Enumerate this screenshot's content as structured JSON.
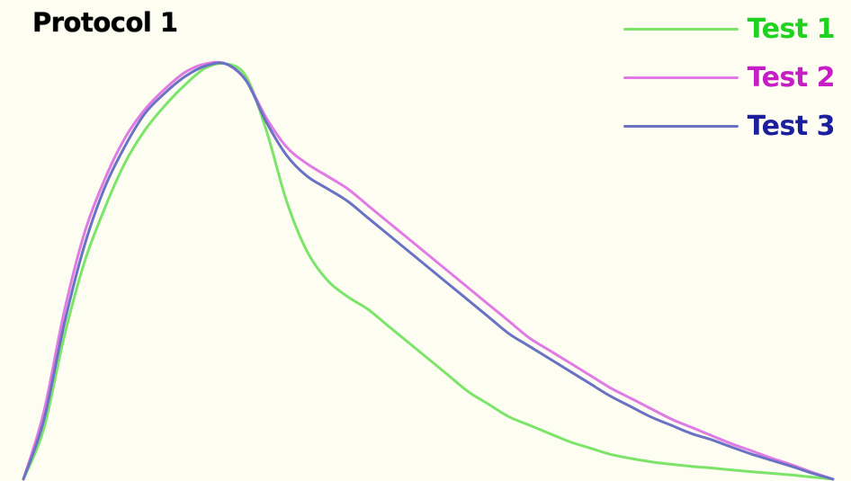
{
  "chart_data": {
    "type": "line",
    "title": "Protocol 1",
    "xlabel": "",
    "ylabel": "",
    "x": [
      0,
      2.5,
      5,
      7.5,
      10,
      12.5,
      15,
      17.5,
      20,
      22.5,
      25,
      27.5,
      30,
      32.5,
      35,
      37.5,
      40,
      42.5,
      45,
      47.5,
      50,
      52.5,
      55,
      57.5,
      60,
      62.5,
      65,
      67.5,
      70,
      72.5,
      75,
      77.5,
      80,
      82.5,
      85,
      87.5,
      90,
      92.5,
      95,
      97.5,
      100
    ],
    "xlim": [
      0,
      100
    ],
    "ylim": [
      0,
      100
    ],
    "grid": false,
    "legend_position": "top-right",
    "series": [
      {
        "name": "Test 1",
        "color": "#7de46a",
        "label_color": "#1fd21f",
        "values": [
          0,
          12,
          34,
          52,
          65,
          76,
          84,
          90,
          95,
          99,
          100,
          97,
          84,
          67,
          55,
          48,
          44,
          41,
          37,
          33,
          29,
          25,
          21,
          18,
          15,
          13,
          11,
          9,
          7.5,
          6,
          5,
          4.2,
          3.6,
          3.1,
          2.7,
          2.2,
          1.8,
          1.4,
          1.0,
          0.5,
          0
        ]
      },
      {
        "name": "Test 2",
        "color": "#e07ae4",
        "label_color": "#c41ec4",
        "values": [
          0,
          16,
          40,
          59,
          72,
          82,
          89,
          94,
          98,
          100,
          100,
          96,
          87,
          80,
          76,
          73,
          70,
          66,
          62,
          58,
          54,
          50,
          46,
          42,
          38,
          34,
          31,
          28,
          25,
          22,
          19.5,
          17,
          14.5,
          12.5,
          10.5,
          8.5,
          6.8,
          5,
          3.4,
          1.6,
          0
        ]
      },
      {
        "name": "Test 3",
        "color": "#6a72c4",
        "label_color": "#1c1f9c",
        "values": [
          0,
          14,
          37,
          56,
          70,
          80,
          88,
          93,
          97,
          99.5,
          100,
          96,
          86,
          78,
          73,
          70,
          67,
          63,
          59,
          55,
          51,
          47,
          43,
          39,
          35,
          32,
          29,
          26,
          23,
          20,
          17.5,
          15,
          13,
          11,
          9.5,
          7.7,
          6,
          4.5,
          3,
          1.4,
          0
        ]
      }
    ]
  }
}
